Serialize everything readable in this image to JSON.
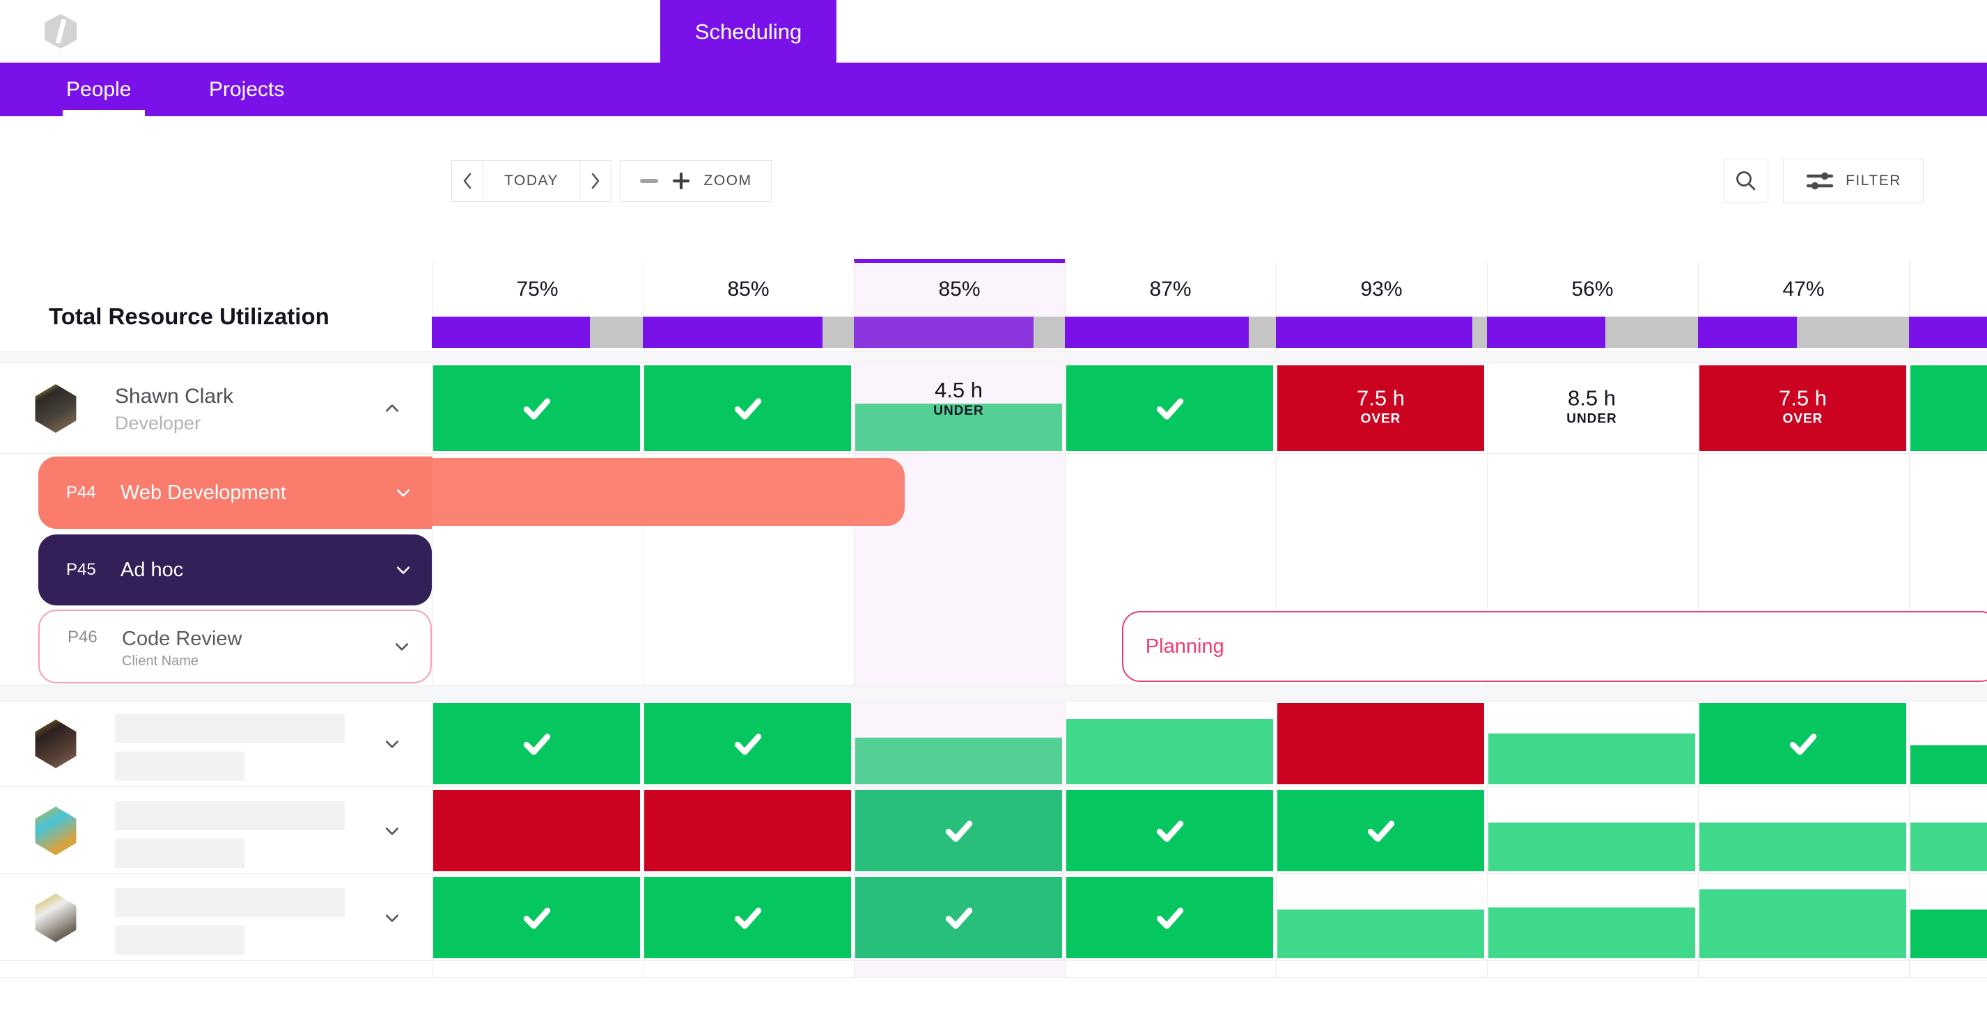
{
  "brand": {
    "logo_icon": "hexagon-logo-icon"
  },
  "top_nav": {
    "tab": "Scheduling"
  },
  "sub_nav": {
    "tabs": [
      {
        "label": "People",
        "active": true
      },
      {
        "label": "Projects",
        "active": false
      }
    ]
  },
  "toolbar": {
    "prev_icon": "chevron-left",
    "today": "TODAY",
    "next_icon": "chevron-right",
    "zoom_out_icon": "minus",
    "zoom_in_icon": "plus",
    "zoom": "ZOOM",
    "search_icon": "magnifier",
    "filter": "FILTER",
    "filter_icon": "sliders"
  },
  "utilization": {
    "title": "Total Resource Utilization",
    "today_column": 2,
    "columns": [
      {
        "label": "75%",
        "percent": 75
      },
      {
        "label": "85%",
        "percent": 85
      },
      {
        "label": "85%",
        "percent": 85
      },
      {
        "label": "87%",
        "percent": 87
      },
      {
        "label": "93%",
        "percent": 93
      },
      {
        "label": "56%",
        "percent": 56
      },
      {
        "label": "47%",
        "percent": 47
      },
      {
        "label": "",
        "percent": 100
      }
    ]
  },
  "people": [
    {
      "name": "Shawn Clark",
      "role": "Developer",
      "skeleton": false,
      "expanded": true,
      "chevron": "up",
      "cells": [
        {
          "t": "check"
        },
        {
          "t": "check"
        },
        {
          "t": "partial",
          "color": "soft_green",
          "fill": 55,
          "value": "4.5 h",
          "status": "UNDER",
          "tone": "dark"
        },
        {
          "t": "check"
        },
        {
          "t": "solid",
          "color": "red",
          "value": "7.5 h",
          "status": "OVER",
          "tone": "light"
        },
        {
          "t": "blank",
          "value": "8.5 h",
          "status": "UNDER",
          "tone": "dark"
        },
        {
          "t": "solid",
          "color": "red",
          "value": "7.5 h",
          "status": "OVER",
          "tone": "light"
        },
        {
          "t": "check"
        }
      ],
      "projects": [
        {
          "code": "P44",
          "name": "Web Development",
          "style": "salmon",
          "chevron": "down",
          "bar": {
            "from_col": 0,
            "to_col": 2.24
          }
        },
        {
          "code": "P45",
          "name": "Ad hoc",
          "style": "indigo",
          "chevron": "down"
        },
        {
          "code": "P46",
          "name": "Code Review",
          "client": "Client Name",
          "style": "outline",
          "chevron": "down",
          "planning": {
            "label": "Planning",
            "from_col": 3.27,
            "open_end": true
          }
        }
      ]
    },
    {
      "name": "",
      "role": "",
      "skeleton": true,
      "expanded": false,
      "chevron": "down",
      "cells": [
        {
          "t": "check"
        },
        {
          "t": "check"
        },
        {
          "t": "partial",
          "color": "soft_green",
          "fill": 57
        },
        {
          "t": "partial",
          "color": "mid_green",
          "fill": 80
        },
        {
          "t": "solid",
          "color": "red"
        },
        {
          "t": "partial",
          "color": "mid_green",
          "fill": 62
        },
        {
          "t": "check"
        },
        {
          "t": "partial",
          "color": "green",
          "fill": 48
        }
      ]
    },
    {
      "name": "",
      "role": "",
      "skeleton": true,
      "expanded": false,
      "chevron": "down",
      "cells": [
        {
          "t": "solid",
          "color": "red"
        },
        {
          "t": "solid",
          "color": "red"
        },
        {
          "t": "check",
          "color": "teal_green"
        },
        {
          "t": "check"
        },
        {
          "t": "check"
        },
        {
          "t": "partial",
          "color": "mid_green",
          "fill": 60
        },
        {
          "t": "partial",
          "color": "mid_green",
          "fill": 60
        },
        {
          "t": "partial",
          "color": "mid_green",
          "fill": 60
        }
      ]
    },
    {
      "name": "",
      "role": "",
      "skeleton": true,
      "expanded": false,
      "chevron": "down",
      "cells": [
        {
          "t": "check"
        },
        {
          "t": "check"
        },
        {
          "t": "check",
          "color": "teal_green"
        },
        {
          "t": "check"
        },
        {
          "t": "partial",
          "color": "mid_green",
          "fill": 60
        },
        {
          "t": "partial",
          "color": "mid_green",
          "fill": 62
        },
        {
          "t": "partial",
          "color": "mid_green",
          "fill": 85
        },
        {
          "t": "partial",
          "color": "green",
          "fill": 60
        }
      ]
    }
  ],
  "colors": {
    "purple": "#7911E8",
    "purple_light": "#8C36E0",
    "green": "#05C65F",
    "soft_green": "#55D095",
    "mid_green": "#40D88A",
    "teal_green": "#28BF7B",
    "red": "#CB0321",
    "salmon": "#FA7C6D",
    "indigo": "#342059",
    "pink": "#EE3D70",
    "lavender": "#FBF4FD",
    "track": "#C5C5C5"
  }
}
